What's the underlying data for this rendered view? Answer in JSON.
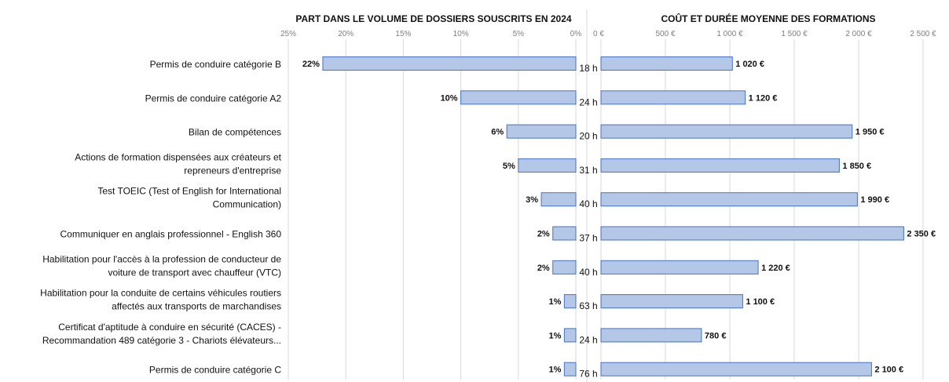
{
  "colors": {
    "bar_fill": "#b4c7e7",
    "bar_stroke": "#4472c4",
    "grid": "#d9d9d9",
    "text": "#111111",
    "tick_text": "#7f7f7f"
  },
  "chart_data": [
    {
      "type": "bar",
      "orientation": "horizontal",
      "title": "PART DANS LE VOLUME DE DOSSIERS SOUSCRITS EN 2024",
      "axis": "reversed",
      "xlim": [
        0,
        25
      ],
      "ticks": [
        "25%",
        "20%",
        "15%",
        "10%",
        "5%",
        "0%"
      ],
      "grid": true,
      "categories": [
        "Permis de conduire catégorie B",
        "Permis de conduire catégorie A2",
        "Bilan de compétences",
        "Actions de formation dispensées aux créateurs et repreneurs d'entreprise",
        "Test TOEIC (Test of English for International Communication)",
        "Communiquer en anglais professionnel - English 360",
        "Habilitation pour l'accès à la profession de conducteur de voiture de transport avec chauffeur (VTC)",
        "Habilitation pour la conduite de certains véhicules routiers affectés aux transports de marchandises",
        "Certificat d'aptitude à conduire en sécurité (CACES) - Recommandation 489 catégorie 3 - Chariots élévateurs...",
        "Permis de conduire catégorie C"
      ],
      "category_lines": [
        [
          "Permis de conduire catégorie B"
        ],
        [
          "Permis de conduire catégorie A2"
        ],
        [
          "Bilan de compétences"
        ],
        [
          "Actions de formation dispensées aux créateurs et",
          "repreneurs d'entreprise"
        ],
        [
          "Test TOEIC (Test of English for International",
          "Communication)"
        ],
        [
          "Communiquer en anglais professionnel - English 360"
        ],
        [
          "Habilitation pour l'accès à la profession de conducteur de",
          "voiture de transport avec chauffeur (VTC)"
        ],
        [
          "Habilitation pour la conduite de certains véhicules routiers",
          "affectés aux transports de marchandises"
        ],
        [
          "Certificat d'aptitude à conduire en sécurité (CACES) -",
          "Recommandation 489 catégorie 3 - Chariots élévateurs..."
        ],
        [
          "Permis de conduire catégorie C"
        ]
      ],
      "values": [
        22,
        10,
        6,
        5,
        3,
        2,
        2,
        1,
        1,
        1
      ],
      "value_labels": [
        "22%",
        "10%",
        "6%",
        "5%",
        "3%",
        "2%",
        "2%",
        "1%",
        "1%",
        "1%"
      ]
    },
    {
      "type": "bar",
      "orientation": "horizontal",
      "title": "COÛT ET DURÉE MOYENNE DES FORMATIONS",
      "xlim": [
        0,
        2500
      ],
      "ticks": [
        "0 €",
        "500 €",
        "1 000 €",
        "1 500 €",
        "2 000 €",
        "2 500 €"
      ],
      "grid": true,
      "values": [
        1020,
        1120,
        1950,
        1850,
        1990,
        2350,
        1220,
        1100,
        780,
        2100
      ],
      "value_labels": [
        "1 020 €",
        "1 120 €",
        "1 950 €",
        "1 850 €",
        "1 990 €",
        "2 350 €",
        "1 220 €",
        "1 100 €",
        "780 €",
        "2 100 €"
      ],
      "durations": [
        "18 h",
        "24 h",
        "20 h",
        "31 h",
        "40 h",
        "37 h",
        "40 h",
        "63 h",
        "24 h",
        "76 h"
      ]
    }
  ]
}
